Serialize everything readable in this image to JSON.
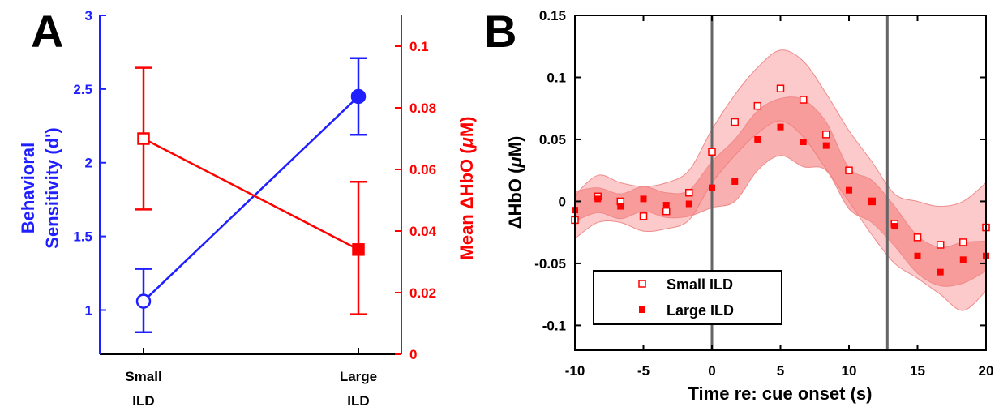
{
  "panel_a": {
    "letter": "A"
  },
  "panel_b": {
    "letter": "B"
  },
  "colors": {
    "blue": "#1f1fff",
    "red": "#ff0000",
    "axis_black": "#000000",
    "event_line": "#666666",
    "band_light": "#fbb8b8",
    "band_dark": "#f47b7b"
  },
  "chart_data": [
    {
      "type": "line",
      "panel": "A",
      "categories": [
        [
          "Small",
          "ILD"
        ],
        [
          "Large",
          "ILD"
        ]
      ],
      "left_axis": {
        "label": [
          "Behavioral",
          "Sensitivity (d')"
        ],
        "ylim": [
          0.7,
          3
        ],
        "ticks": [
          1,
          1.5,
          2,
          2.5,
          3
        ],
        "tick_labels": [
          "1",
          "1.5",
          "2",
          "2.5",
          "3"
        ],
        "color": "#1f1fff"
      },
      "right_axis": {
        "label": "Mean ΔHbO (μM)",
        "label_parts": [
          "Mean ΔHbO (",
          "μ",
          "M)"
        ],
        "ylim": [
          0,
          0.11
        ],
        "ticks": [
          0,
          0.02,
          0.04,
          0.06,
          0.08,
          0.1
        ],
        "tick_labels": [
          "0",
          "0.02",
          "0.04",
          "0.06",
          "0.08",
          "0.1"
        ],
        "color": "#ff0000"
      },
      "series": [
        {
          "axis": "left",
          "color": "#1f1fff",
          "marker": [
            "circle-open",
            "circle-filled"
          ],
          "values": [
            1.06,
            2.45
          ],
          "err_low": [
            0.85,
            2.19
          ],
          "err_high": [
            1.28,
            2.71
          ]
        },
        {
          "axis": "right",
          "color": "#ff0000",
          "marker": [
            "square-open",
            "square-filled"
          ],
          "values": [
            0.07,
            0.034
          ],
          "err_low": [
            0.047,
            0.013
          ],
          "err_high": [
            0.093,
            0.056
          ]
        }
      ]
    },
    {
      "type": "scatter",
      "panel": "B",
      "xlabel": "Time re: cue onset (s)",
      "ylabel_parts": [
        "ΔHbO (",
        "μ",
        "M)"
      ],
      "xlim": [
        -10,
        20
      ],
      "ylim": [
        -0.12,
        0.15
      ],
      "xticks": [
        -10,
        -5,
        0,
        5,
        10,
        15,
        20
      ],
      "xtick_labels": [
        "-10",
        "-5",
        "0",
        "5",
        "10",
        "15",
        "20"
      ],
      "yticks": [
        -0.1,
        -0.05,
        0,
        0.05,
        0.1,
        0.15
      ],
      "ytick_labels": [
        "-0.1",
        "-0.05",
        "0",
        "0.05",
        "0.1",
        "0.15"
      ],
      "event_lines_x": [
        0,
        12.8
      ],
      "legend": {
        "placement": "bottom-left",
        "entries": [
          "Small ILD",
          "Large ILD"
        ]
      },
      "series": [
        {
          "name": "Small ILD",
          "marker": "square-open",
          "color": "#ff0000",
          "x": [
            -10,
            -8.33,
            -6.67,
            -5,
            -3.33,
            -1.67,
            0,
            1.67,
            3.33,
            5,
            6.67,
            8.33,
            10,
            11.67,
            13.33,
            15,
            16.67,
            18.33,
            20
          ],
          "y": [
            -0.015,
            0.004,
            0.0,
            -0.012,
            -0.008,
            0.007,
            0.04,
            0.064,
            0.077,
            0.091,
            0.082,
            0.054,
            0.025,
            0.0,
            -0.018,
            -0.029,
            -0.035,
            -0.033,
            -0.021
          ],
          "band_low": [
            -0.03,
            -0.017,
            -0.017,
            -0.024,
            -0.022,
            -0.015,
            0.015,
            0.037,
            0.055,
            0.065,
            0.052,
            0.026,
            0.0,
            -0.027,
            -0.05,
            -0.062,
            -0.075,
            -0.088,
            -0.072
          ],
          "band_high": [
            0.005,
            0.021,
            0.015,
            0.012,
            0.015,
            0.025,
            0.058,
            0.086,
            0.108,
            0.122,
            0.113,
            0.087,
            0.057,
            0.032,
            0.006,
            0.0,
            -0.004,
            -0.0,
            0.015
          ]
        },
        {
          "name": "Large ILD",
          "marker": "square-filled",
          "color": "#ff0000",
          "x": [
            -10,
            -8.33,
            -6.67,
            -5,
            -3.33,
            -1.67,
            0,
            1.67,
            3.33,
            5,
            6.67,
            8.33,
            10,
            11.67,
            13.33,
            15,
            16.67,
            18.33,
            20
          ],
          "y": [
            -0.007,
            0.002,
            -0.004,
            0.002,
            -0.003,
            -0.002,
            0.011,
            0.016,
            0.05,
            0.06,
            0.048,
            0.045,
            0.009,
            0.0,
            -0.02,
            -0.044,
            -0.057,
            -0.047,
            -0.044
          ],
          "band_low": [
            -0.016,
            -0.009,
            -0.014,
            -0.008,
            -0.013,
            -0.012,
            -0.005,
            0.0,
            0.025,
            0.037,
            0.028,
            0.025,
            -0.006,
            -0.017,
            -0.036,
            -0.058,
            -0.068,
            -0.066,
            -0.056
          ],
          "band_high": [
            0.008,
            0.011,
            0.006,
            0.012,
            0.007,
            0.009,
            0.032,
            0.05,
            0.073,
            0.083,
            0.082,
            0.064,
            0.027,
            0.017,
            -0.004,
            -0.028,
            -0.037,
            -0.033,
            -0.032
          ]
        }
      ]
    }
  ]
}
